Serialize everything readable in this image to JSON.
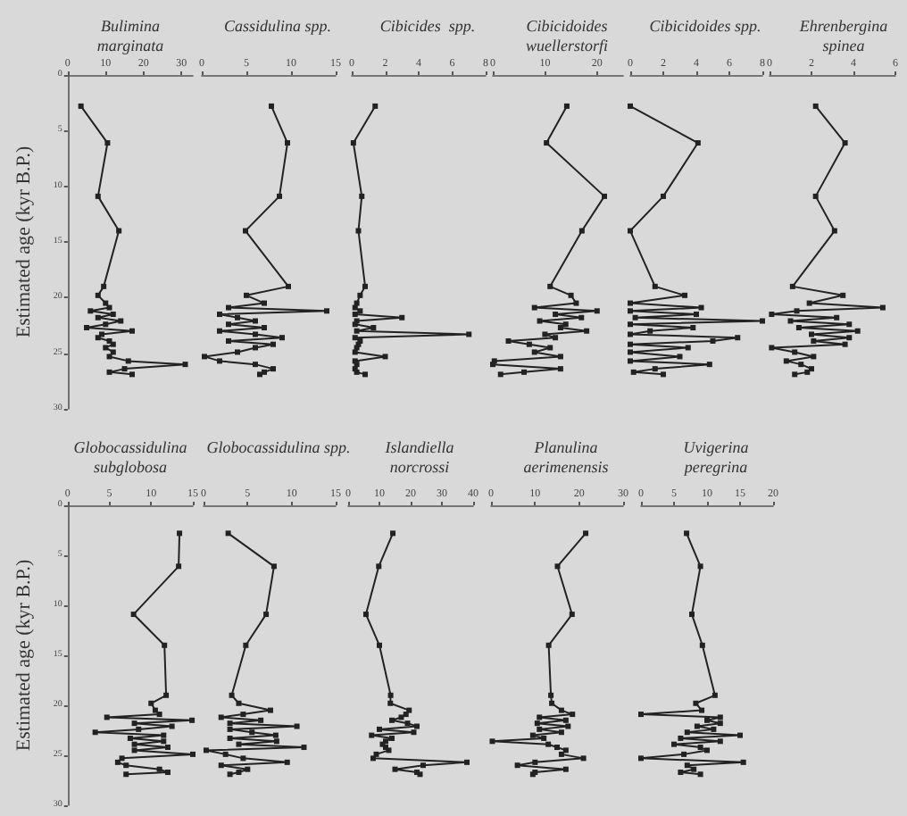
{
  "chart_data": [
    {
      "type": "line",
      "title": "Bulimina\nmarginata",
      "ylabel": "Estimated age (kyr B.P.)",
      "xlim": [
        0,
        33
      ],
      "xticks": [
        0,
        10,
        20,
        30
      ],
      "ylim": [
        30,
        0
      ],
      "yticks": [
        0,
        5,
        10,
        15,
        20,
        25,
        30
      ],
      "marker": "square",
      "color": "#222222",
      "x": [
        3.5,
        10.5,
        8,
        13.5,
        9.5,
        8,
        10,
        11,
        6,
        12,
        8,
        14,
        10,
        5,
        17,
        9,
        8,
        11,
        12,
        10,
        12,
        11,
        16,
        31,
        15,
        11,
        17
      ],
      "values": [
        2.8,
        6.1,
        10.9,
        14.0,
        19.0,
        19.8,
        20.5,
        20.9,
        21.2,
        21.5,
        21.8,
        22.1,
        22.4,
        22.7,
        23.0,
        23.3,
        23.6,
        23.9,
        24.2,
        24.5,
        24.9,
        25.3,
        25.7,
        26.0,
        26.4,
        26.7,
        26.9
      ]
    },
    {
      "type": "line",
      "title": "Cassidulina spp.",
      "tick_labels": "x",
      "xlim": [
        0,
        15
      ],
      "xticks": [
        0,
        5,
        10,
        15
      ],
      "ylim": [
        30,
        0
      ],
      "marker": "square",
      "color": "#222222",
      "x": [
        7.8,
        9.6,
        8.7,
        4.9,
        9.7,
        5,
        7,
        3,
        14,
        2,
        4,
        6,
        3,
        7,
        2,
        6,
        9,
        3,
        8,
        6,
        4,
        0.3,
        2,
        6,
        8,
        7,
        6.5
      ],
      "values": [
        2.8,
        6.1,
        10.9,
        14.0,
        19.0,
        19.8,
        20.5,
        20.9,
        21.2,
        21.5,
        21.8,
        22.1,
        22.4,
        22.7,
        23.0,
        23.3,
        23.6,
        23.9,
        24.2,
        24.5,
        24.9,
        25.3,
        25.7,
        26.0,
        26.4,
        26.7,
        26.9
      ]
    },
    {
      "type": "line",
      "title": "Cibicides  spp.",
      "tick_labels": "x",
      "xlim": [
        0,
        8
      ],
      "xticks": [
        0,
        2,
        4,
        6,
        8
      ],
      "ylim": [
        30,
        0
      ],
      "marker": "square",
      "color": "#222222",
      "x": [
        1.4,
        0.1,
        0.6,
        0.4,
        0.8,
        0.5,
        0.3,
        0.2,
        0.5,
        0.2,
        3,
        0.3,
        0.2,
        1.3,
        0.3,
        7,
        0.2,
        0.5,
        0.4,
        0.3,
        0.2,
        2,
        0.2,
        0.3,
        0.2,
        0.3,
        0.8
      ],
      "values": [
        2.8,
        6.1,
        10.9,
        14.0,
        19.0,
        19.8,
        20.5,
        20.9,
        21.2,
        21.5,
        21.8,
        22.1,
        22.4,
        22.7,
        23.0,
        23.3,
        23.6,
        23.9,
        24.2,
        24.5,
        24.9,
        25.3,
        25.7,
        26.0,
        26.4,
        26.7,
        26.9
      ]
    },
    {
      "type": "line",
      "title": "Cibicidoides\nwuellerstorfi",
      "tick_labels": "x",
      "xlim": [
        0,
        25
      ],
      "xticks": [
        0,
        10,
        20
      ],
      "ylim": [
        30,
        0
      ],
      "marker": "square",
      "color": "#222222",
      "x": [
        14.2,
        10.3,
        21.4,
        17.1,
        11,
        15,
        16,
        8,
        20,
        12,
        17,
        9,
        14,
        13,
        18,
        10,
        12,
        3,
        7,
        11,
        8,
        13,
        0.3,
        0,
        13,
        6,
        1.5
      ],
      "values": [
        2.8,
        6.1,
        10.9,
        14.0,
        19.0,
        19.8,
        20.5,
        20.9,
        21.2,
        21.5,
        21.8,
        22.1,
        22.4,
        22.7,
        23.0,
        23.3,
        23.6,
        23.9,
        24.2,
        24.5,
        24.9,
        25.3,
        25.7,
        26.0,
        26.4,
        26.7,
        26.9
      ]
    },
    {
      "type": "line",
      "title": "Cibicidoides spp.",
      "tick_labels": "x",
      "xlim": [
        0,
        8
      ],
      "xticks": [
        0,
        2,
        4,
        6,
        8
      ],
      "ylim": [
        30,
        0
      ],
      "marker": "square",
      "color": "#222222",
      "x": [
        0,
        4.1,
        2,
        0,
        1.5,
        3.3,
        0,
        4.3,
        0,
        4,
        0.3,
        8,
        0,
        3.8,
        1.2,
        0,
        6.5,
        5,
        0,
        3.5,
        0,
        3,
        0,
        4.8,
        1.5,
        0.2,
        2
      ],
      "values": [
        2.8,
        6.1,
        10.9,
        14.0,
        19.0,
        19.8,
        20.5,
        20.9,
        21.2,
        21.5,
        21.8,
        22.1,
        22.4,
        22.7,
        23.0,
        23.3,
        23.6,
        23.9,
        24.2,
        24.5,
        24.9,
        25.3,
        25.7,
        26.0,
        26.4,
        26.7,
        26.9
      ]
    },
    {
      "type": "line",
      "title": "Ehrenbergina\nspinea",
      "tick_labels": "x",
      "xlim": [
        0,
        6
      ],
      "xticks": [
        0,
        2,
        4,
        6
      ],
      "ylim": [
        30,
        0
      ],
      "marker": "square",
      "color": "#222222",
      "x": [
        2.2,
        3.6,
        2.2,
        3.1,
        1.1,
        3.5,
        1.9,
        5.4,
        1.3,
        0.1,
        3.2,
        1,
        3.8,
        1.4,
        4.2,
        2,
        3.8,
        2.1,
        3.6,
        0.1,
        1.2,
        2.1,
        0.8,
        1.5,
        2,
        1.8,
        1.2
      ],
      "values": [
        2.8,
        6.1,
        10.9,
        14.0,
        19.0,
        19.8,
        20.5,
        20.9,
        21.2,
        21.5,
        21.8,
        22.1,
        22.4,
        22.7,
        23.0,
        23.3,
        23.6,
        23.9,
        24.2,
        24.5,
        24.9,
        25.3,
        25.7,
        26.0,
        26.4,
        26.7,
        26.9
      ]
    },
    {
      "type": "line",
      "title": "Globocassidulina\nsubglobosa",
      "ylabel": "Estimated age (kyr B.P.)",
      "xlim": [
        0,
        15
      ],
      "xticks": [
        0,
        5,
        10,
        15
      ],
      "ylim": [
        30,
        0
      ],
      "yticks": [
        0,
        5,
        10,
        15,
        20,
        25,
        30
      ],
      "marker": "square",
      "color": "#222222",
      "x": [
        13.4,
        13.3,
        7.9,
        11.6,
        11.8,
        10,
        10.5,
        11,
        4.7,
        14.9,
        8,
        12.5,
        8.5,
        3.3,
        11.5,
        7.5,
        11.5,
        8,
        12,
        8,
        15,
        6.5,
        6,
        7,
        11,
        12,
        7
      ],
      "values": [
        2.8,
        6.1,
        10.9,
        14.0,
        19.0,
        19.8,
        20.5,
        20.9,
        21.2,
        21.5,
        21.8,
        22.1,
        22.4,
        22.7,
        23.0,
        23.3,
        23.6,
        23.9,
        24.2,
        24.5,
        24.9,
        25.3,
        25.7,
        26.0,
        26.4,
        26.7,
        26.9
      ]
    },
    {
      "type": "line",
      "title": "Globocassidulina spp.",
      "tick_labels": "x",
      "xlim": [
        0,
        15
      ],
      "xticks": [
        0,
        5,
        10,
        15
      ],
      "ylim": [
        30,
        0
      ],
      "marker": "square",
      "color": "#222222",
      "x": [
        2.8,
        8,
        7.1,
        4.8,
        3.2,
        4,
        7.6,
        4.5,
        2,
        6.5,
        3,
        10.6,
        3,
        5.5,
        8.2,
        3,
        8.3,
        4,
        11.4,
        0.3,
        2.5,
        4.5,
        9.5,
        2,
        5,
        4,
        3
      ],
      "values": [
        2.8,
        6.1,
        10.9,
        14.0,
        19.0,
        19.8,
        20.5,
        20.9,
        21.2,
        21.5,
        21.8,
        22.1,
        22.4,
        22.7,
        23.0,
        23.3,
        23.6,
        23.9,
        24.2,
        24.5,
        24.9,
        25.3,
        25.7,
        26.0,
        26.4,
        26.7,
        26.9
      ]
    },
    {
      "type": "line",
      "title": "Islandiella\nnorcrossi",
      "tick_labels": "x",
      "xlim": [
        0,
        40
      ],
      "xticks": [
        0,
        10,
        20,
        30,
        40
      ],
      "ylim": [
        30,
        0
      ],
      "marker": "square",
      "color": "#222222",
      "x": [
        14.3,
        9.8,
        5.7,
        10,
        13.6,
        13.5,
        19.5,
        18.5,
        17,
        14,
        19,
        22,
        10,
        21,
        7.5,
        14,
        12,
        11,
        12,
        13,
        9,
        8,
        38,
        24,
        15,
        22,
        23
      ],
      "values": [
        2.8,
        6.1,
        10.9,
        14.0,
        19.0,
        19.8,
        20.5,
        20.9,
        21.2,
        21.5,
        21.8,
        22.1,
        22.4,
        22.7,
        23.0,
        23.3,
        23.6,
        23.9,
        24.2,
        24.5,
        24.9,
        25.3,
        25.7,
        26.0,
        26.4,
        26.7,
        26.9
      ]
    },
    {
      "type": "line",
      "title": "Planulina\naerimenensis",
      "tick_labels": "x",
      "xlim": [
        0,
        30
      ],
      "xticks": [
        0,
        10,
        20,
        30
      ],
      "ylim": [
        30,
        0
      ],
      "marker": "square",
      "color": "#222222",
      "x": [
        21.5,
        15.1,
        18.4,
        13.1,
        13.6,
        13.8,
        16,
        18.5,
        11,
        17,
        10.5,
        17.5,
        11,
        16,
        9.5,
        12,
        0.3,
        13,
        15,
        17,
        16,
        21,
        10,
        6,
        17,
        10,
        9.5
      ],
      "values": [
        2.8,
        6.1,
        10.9,
        14.0,
        19.0,
        19.8,
        20.5,
        20.9,
        21.2,
        21.5,
        21.8,
        22.1,
        22.4,
        22.7,
        23.0,
        23.3,
        23.6,
        23.9,
        24.2,
        24.5,
        24.9,
        25.3,
        25.7,
        26.0,
        26.4,
        26.7,
        26.9
      ]
    },
    {
      "type": "line",
      "title": "Uvigerina\nperegrina",
      "tick_labels": "x",
      "xlim": [
        0,
        20
      ],
      "xticks": [
        0,
        5,
        10,
        15,
        20
      ],
      "ylim": [
        30,
        0
      ],
      "marker": "square",
      "color": "#222222",
      "x": [
        6.9,
        9,
        7.7,
        9.3,
        11.2,
        8.3,
        9.2,
        0,
        12,
        10,
        12,
        8.5,
        11,
        7,
        15,
        6,
        12,
        5,
        9,
        10,
        6.5,
        0,
        15.5,
        7,
        8,
        6,
        9
      ],
      "values": [
        2.8,
        6.1,
        10.9,
        14.0,
        19.0,
        19.8,
        20.5,
        20.9,
        21.2,
        21.5,
        21.8,
        22.1,
        22.4,
        22.7,
        23.0,
        23.3,
        23.6,
        23.9,
        24.2,
        24.5,
        24.9,
        25.3,
        25.7,
        26.0,
        26.4,
        26.7,
        26.9
      ]
    }
  ]
}
